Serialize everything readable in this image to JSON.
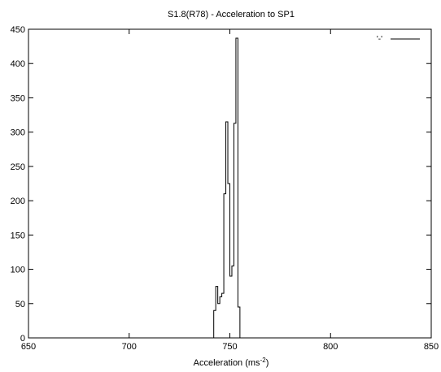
{
  "chart_data": {
    "type": "line",
    "style": "steps",
    "title": "S1.8(R78) - Acceleration to SP1",
    "xlabel": "Acceleration (ms",
    "xlabel_sup": "-2",
    "xlabel_close": ")",
    "ylabel": "",
    "xlim": [
      650,
      850
    ],
    "ylim": [
      0,
      450
    ],
    "x_ticks": [
      650,
      700,
      750,
      800,
      850
    ],
    "y_ticks": [
      0,
      50,
      100,
      150,
      200,
      250,
      300,
      350,
      400,
      450
    ],
    "grid": false,
    "legend": "top-right",
    "series": [
      {
        "name": "'-'",
        "color": "#000000",
        "points": [
          [
            742,
            0
          ],
          [
            742,
            40
          ],
          [
            743,
            40
          ],
          [
            743,
            75
          ],
          [
            744,
            75
          ],
          [
            744,
            50
          ],
          [
            745,
            50
          ],
          [
            745,
            60
          ],
          [
            746,
            60
          ],
          [
            746,
            65
          ],
          [
            747,
            65
          ],
          [
            747,
            210
          ],
          [
            748,
            210
          ],
          [
            748,
            315
          ],
          [
            749,
            315
          ],
          [
            749,
            225
          ],
          [
            750,
            225
          ],
          [
            750,
            90
          ],
          [
            751,
            90
          ],
          [
            751,
            105
          ],
          [
            752,
            105
          ],
          [
            752,
            313
          ],
          [
            753,
            313
          ],
          [
            753,
            437
          ],
          [
            754,
            437
          ],
          [
            754,
            45
          ],
          [
            755,
            45
          ],
          [
            755,
            0
          ]
        ]
      }
    ]
  }
}
